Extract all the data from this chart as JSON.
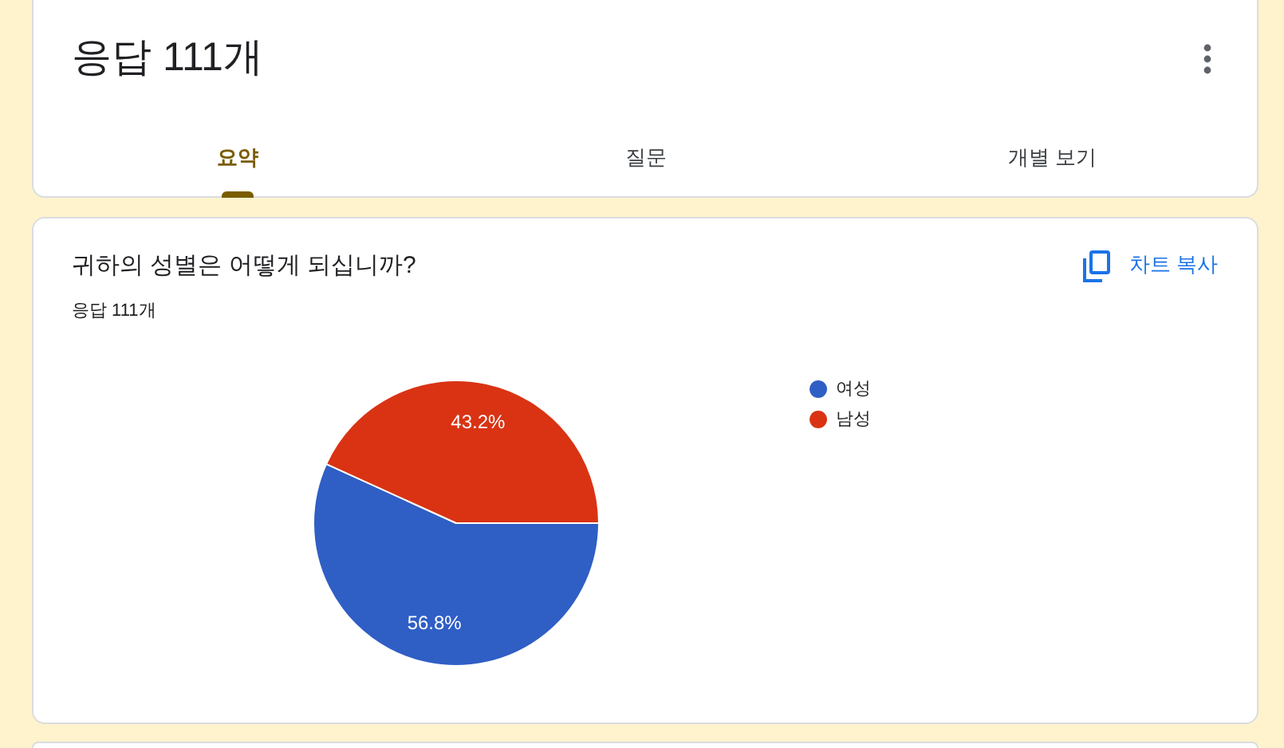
{
  "chart_data": {
    "type": "pie",
    "title": "귀하의 성별은 어떻게 되십니까?",
    "subtitle": "응답 111개",
    "categories": [
      "여성",
      "남성"
    ],
    "values": [
      56.8,
      43.2
    ],
    "colors": [
      "#2f5ec5",
      "#d93314"
    ],
    "value_labels": [
      "56.8%",
      "43.2%"
    ],
    "legend": "right",
    "annotations": [
      "응답 111개",
      "요약",
      "질문",
      "개별 보기",
      "차트 복사"
    ]
  }
}
